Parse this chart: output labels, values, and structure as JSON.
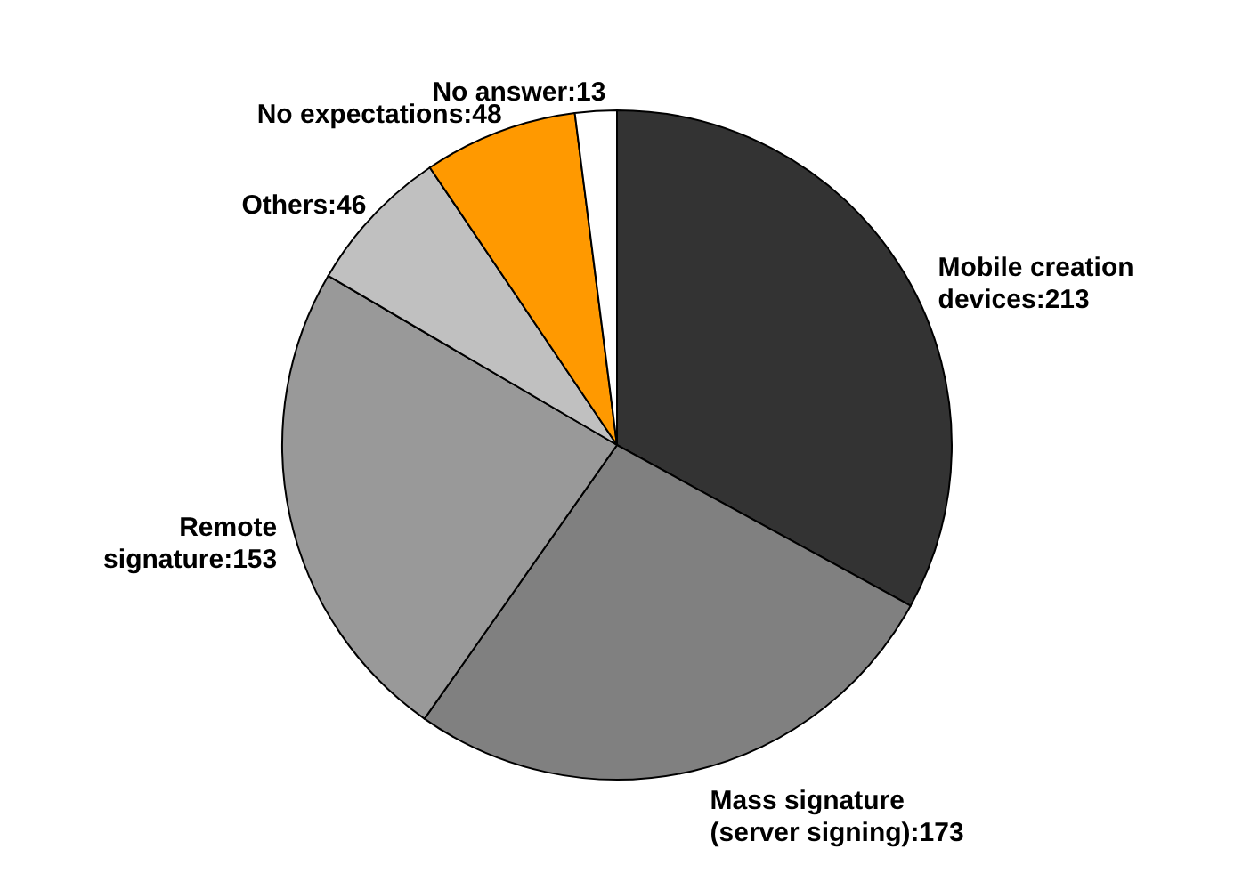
{
  "chart_data": {
    "type": "pie",
    "categories": [
      "Mobile creation devices:213",
      "Mass signature (server signing):173",
      "Remote signature:153",
      "Others:46",
      "No expectations:48",
      "No answer:13"
    ],
    "values": [
      213,
      173,
      153,
      46,
      48,
      13
    ],
    "colors": [
      "#333333",
      "#808080",
      "#999999",
      "#c0c0c0",
      "#ff9900",
      "#ffffff"
    ]
  }
}
